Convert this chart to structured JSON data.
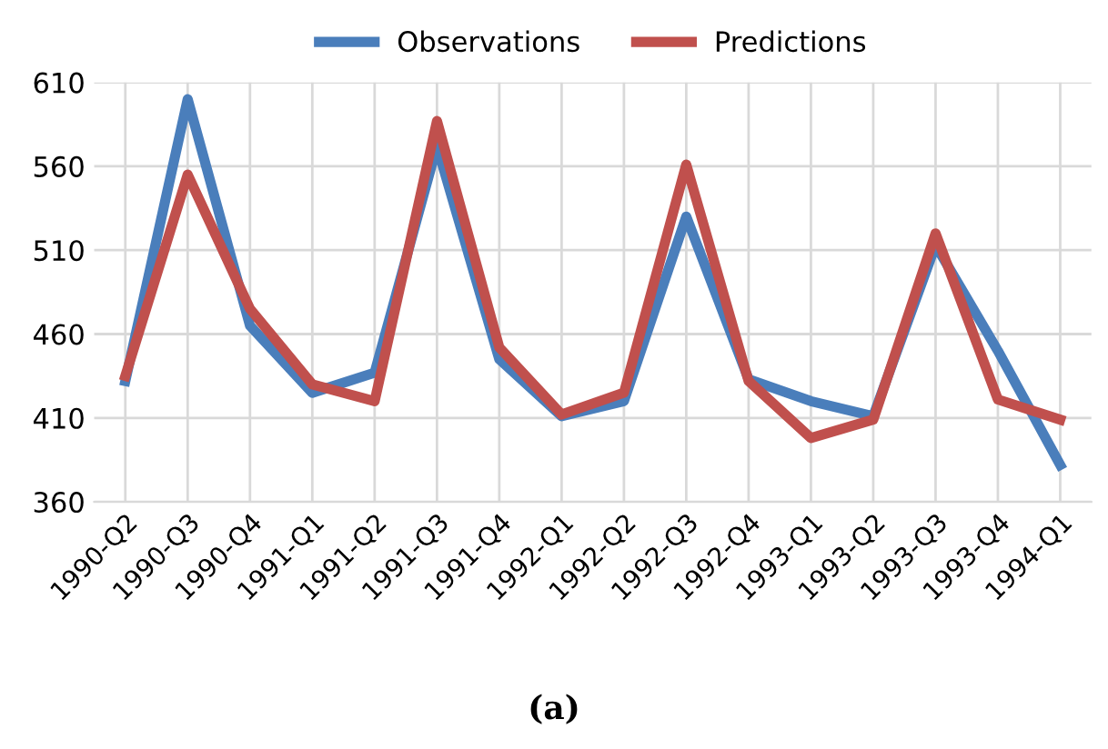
{
  "chart_data": {
    "type": "line",
    "categories": [
      "1990-Q2",
      "1990-Q3",
      "1990-Q4",
      "1991-Q1",
      "1991-Q2",
      "1991-Q3",
      "1991-Q4",
      "1992-Q1",
      "1992-Q2",
      "1992-Q3",
      "1992-Q4",
      "1993-Q1",
      "1993-Q2",
      "1993-Q3",
      "1993-Q4",
      "1994-Q1"
    ],
    "series": [
      {
        "name": "Observations",
        "color": "#4a7ebb",
        "values": [
          432,
          600,
          465,
          425,
          437,
          572,
          445,
          411,
          420,
          530,
          433,
          420,
          411,
          513,
          450,
          382
        ]
      },
      {
        "name": "Predictions",
        "color": "#c0504d",
        "values": [
          435,
          555,
          475,
          430,
          420,
          587,
          452,
          412,
          425,
          561,
          432,
          398,
          409,
          520,
          421,
          409
        ]
      }
    ],
    "ylim": [
      360,
      610
    ],
    "yticks": [
      360,
      410,
      460,
      510,
      560,
      610
    ],
    "grid": true,
    "legend": "top",
    "marker": "none",
    "line_style": "solid",
    "annotations": [
      "(a)"
    ]
  }
}
